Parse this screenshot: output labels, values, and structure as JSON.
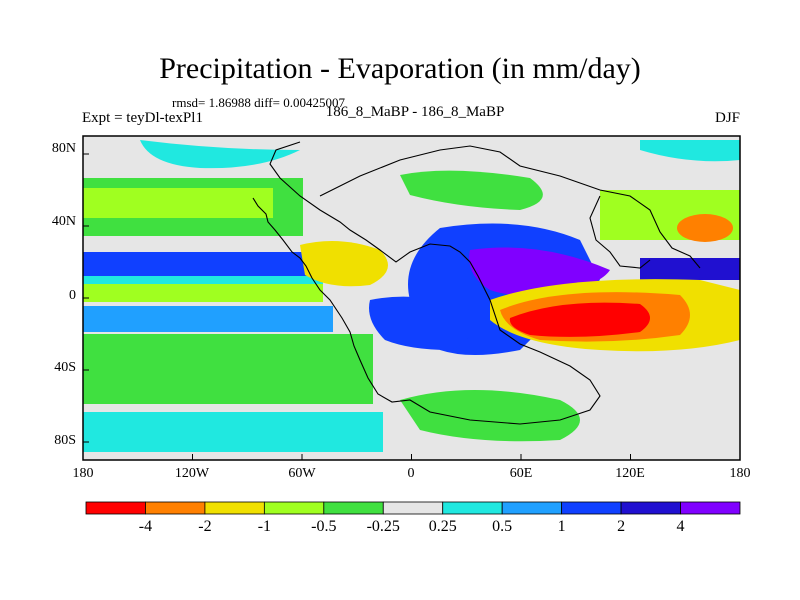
{
  "title": "Precipitation - Evaporation (in mm/day)",
  "stats": "rmsd= 1.86988 diff= 0.00425007",
  "experiment": "Expt = teyDl-texPl1",
  "comparison": "186_8_MaBP - 186_8_MaBP",
  "season": "DJF",
  "lat_ticks": [
    "80N",
    "40N",
    "0",
    "40S",
    "80S"
  ],
  "lon_ticks": [
    "180",
    "120W",
    "60W",
    "0",
    "60E",
    "120E",
    "180"
  ],
  "colorbar": {
    "labels": [
      "-4",
      "-2",
      "-1",
      "-0.5",
      "-0.25",
      "0.25",
      "0.5",
      "1",
      "2",
      "4"
    ],
    "colors": [
      "#ff0000",
      "#ff8000",
      "#f0e000",
      "#a0ff20",
      "#40e040",
      "#e6e6e6",
      "#20e8e0",
      "#20a0ff",
      "#1040ff",
      "#2010d0",
      "#8000ff"
    ]
  },
  "map_colors": {
    "background": "#e6e6e6",
    "coast": "#000000"
  }
}
